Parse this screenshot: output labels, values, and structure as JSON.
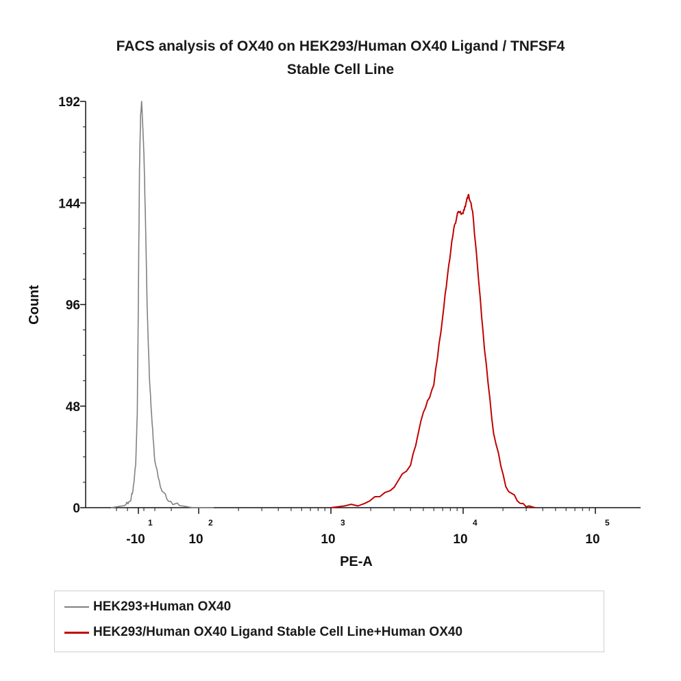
{
  "chart_data": {
    "type": "line",
    "title": "FACS analysis of OX40 on HEK293/Human OX40 Ligand / TNFSF4",
    "subtitle": "Stable Cell Line",
    "xlabel": "PE-A",
    "ylabel": "Count",
    "ylim": [
      0,
      192
    ],
    "y_ticks": [
      "0",
      "48",
      "96",
      "144",
      "192"
    ],
    "x_scale": "biexponential (log above 10^2)",
    "x_ticks": [
      {
        "base": "-10",
        "exp": "1",
        "value": -10
      },
      {
        "base": "10",
        "exp": "2",
        "value": 100
      },
      {
        "base": "10",
        "exp": "3",
        "value": 1000
      },
      {
        "base": "10",
        "exp": "4",
        "value": 10000
      },
      {
        "base": "10",
        "exp": "5",
        "value": 100000
      }
    ],
    "grid": false,
    "legend_position": "bottom",
    "series": [
      {
        "name": "HEK293+Human OX40",
        "color": "#808080",
        "note_x_units": "approximate PE-A intensity",
        "x": [
          -60,
          -35,
          -25,
          -20,
          -15,
          -12,
          -10,
          -8,
          -6,
          -4,
          -2,
          0,
          3,
          6,
          10,
          15,
          20,
          30,
          45,
          65,
          90,
          130
        ],
        "y": [
          0,
          1,
          3,
          8,
          20,
          45,
          100,
          160,
          185,
          192,
          180,
          168,
          135,
          95,
          62,
          40,
          22,
          10,
          3,
          1,
          0,
          0
        ]
      },
      {
        "name": "HEK293/Human OX40 Ligand Stable Cell Line+Human OX40",
        "color": "#c00000",
        "note_x_units": "approximate PE-A intensity",
        "x": [
          1000,
          1800,
          2800,
          4000,
          5000,
          6000,
          7000,
          7800,
          8500,
          9200,
          10000,
          10500,
          11000,
          11800,
          12800,
          14500,
          17000,
          21000,
          27000,
          35000
        ],
        "y": [
          0,
          2,
          8,
          20,
          45,
          58,
          90,
          115,
          132,
          140,
          139,
          144,
          148,
          140,
          115,
          75,
          35,
          10,
          2,
          0
        ]
      }
    ]
  }
}
